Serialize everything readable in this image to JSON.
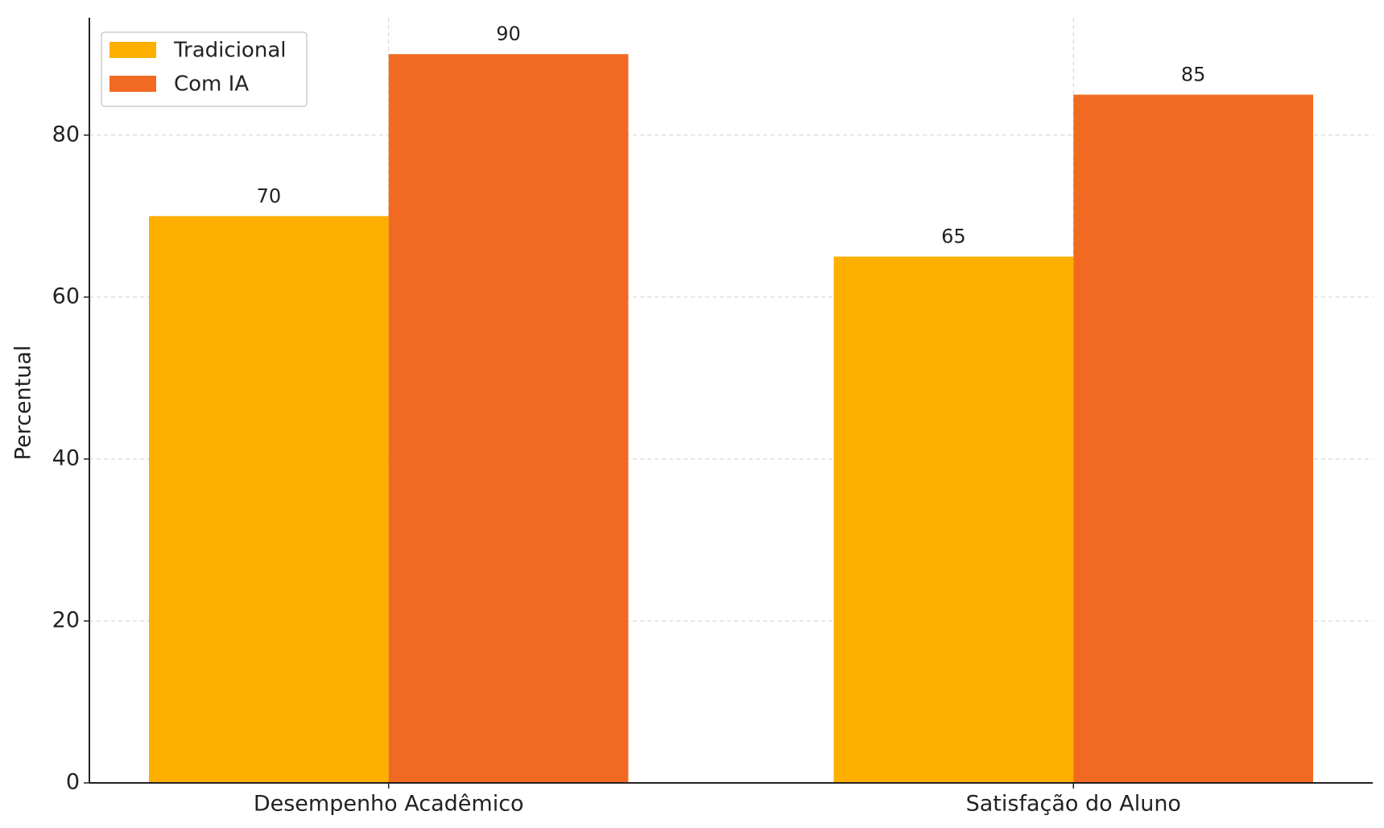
{
  "chart_data": {
    "type": "bar",
    "y_label": "Percentual",
    "categories": [
      "Desempenho Acadêmico",
      "Satisfação do Aluno"
    ],
    "series": [
      {
        "name": "Tradicional",
        "color": "#fdaf00",
        "values": [
          70,
          65
        ]
      },
      {
        "name": "Com IA",
        "color": "#f26a22",
        "values": [
          90,
          85
        ]
      }
    ],
    "ylim": [
      0,
      94.5
    ],
    "yticks": [
      0,
      20,
      40,
      60,
      80
    ],
    "grid": true,
    "legend": "upper left"
  }
}
